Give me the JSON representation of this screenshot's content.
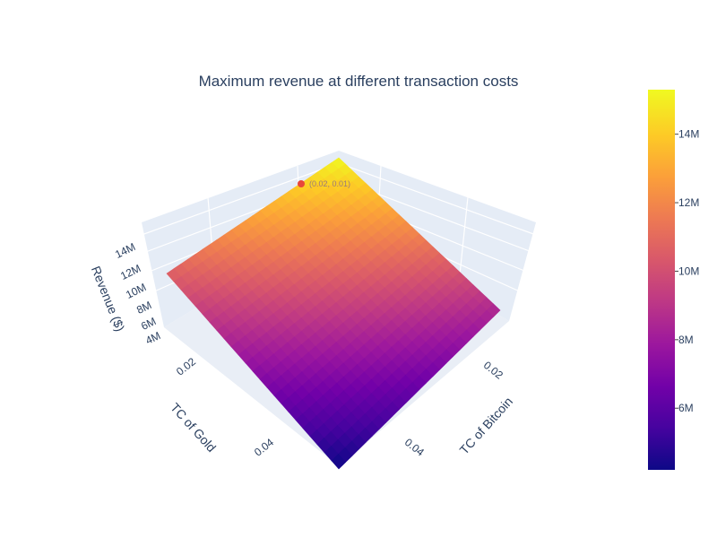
{
  "chart_data": {
    "type": "surface",
    "title": "Maximum revenue at different transaction costs",
    "x_axis": {
      "label": "TC of Bitcoin",
      "ticks": [
        "0.02",
        "0.04"
      ]
    },
    "y_axis": {
      "label": "TC of Gold",
      "ticks": [
        "0.02",
        "0.04"
      ]
    },
    "z_axis": {
      "label": "Revenue ($)",
      "ticks": [
        "4M",
        "6M",
        "8M",
        "10M",
        "12M",
        "14M"
      ]
    },
    "colorbar": {
      "ticks": [
        "6M",
        "8M",
        "10M",
        "12M",
        "14M"
      ],
      "range": [
        4200000,
        15300000
      ],
      "colorscale": [
        "#0d0887",
        "#46039f",
        "#7201a8",
        "#9c179e",
        "#bd3786",
        "#d8576b",
        "#ed7953",
        "#fb9f3a",
        "#fdca26",
        "#f0f921"
      ]
    },
    "corners": [
      {
        "tc_bitcoin": 0.0,
        "tc_gold": 0.0,
        "revenue": 15300000
      },
      {
        "tc_bitcoin": 0.05,
        "tc_gold": 0.0,
        "revenue": 8500000
      },
      {
        "tc_bitcoin": 0.0,
        "tc_gold": 0.05,
        "revenue": 10700000
      },
      {
        "tc_bitcoin": 0.05,
        "tc_gold": 0.05,
        "revenue": 4200000
      }
    ],
    "marker": {
      "label": "(0.02, 0.01)",
      "color": "#e8473a"
    }
  }
}
